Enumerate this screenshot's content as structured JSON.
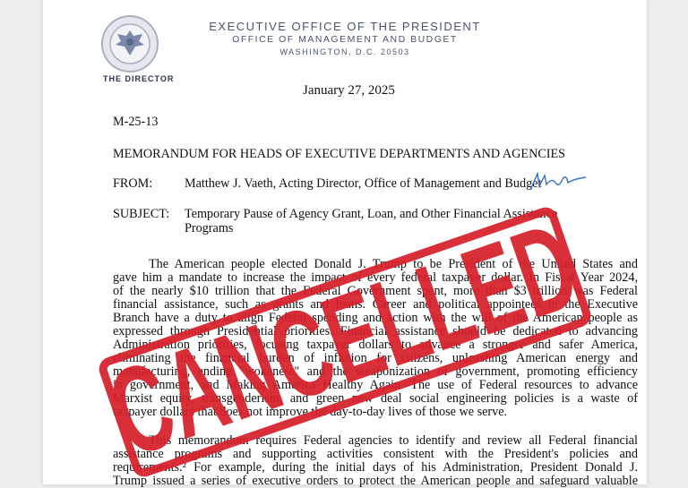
{
  "letterhead": {
    "line1": "EXECUTIVE OFFICE OF THE PRESIDENT",
    "line2": "OFFICE OF MANAGEMENT AND BUDGET",
    "line3": "WASHINGTON, D.C. 20503",
    "seal_caption": "THE DIRECTOR",
    "seal_icon": "presidential-seal-icon"
  },
  "date": "January 27, 2025",
  "memo_number": "M-25-13",
  "memo_heading": "MEMORANDUM FOR HEADS OF EXECUTIVE DEPARTMENTS AND AGENCIES",
  "from": {
    "label": "FROM:",
    "value": "Matthew J. Vaeth, Acting Director, Office of Management and Budget"
  },
  "subject": {
    "label": "SUBJECT:",
    "line1": "Temporary Pause of Agency Grant, Loan, and Other Financial Assistance",
    "line2": "Programs"
  },
  "paragraph1": [
    "The American people elected Donald J. Trump to be President of the United States and",
    "gave him a mandate to increase the impact of every federal taxpayer dollar. In Fiscal Year 2024,",
    "of the nearly $10 trillion that the Federal Government spent, more than $3 trillion was Federal",
    "financial assistance, such as grants and loans. Career and political appointees in the Executive",
    "Branch have a duty to align Federal spending and action with the will of the American people as",
    "expressed through Presidential priorities. Financial assistance should be dedicated to advancing",
    "Administration priorities, focusing taxpayer dollars to advance a stronger and safer America,",
    "eliminating the financial burden of inflation for citizens, unleashing American energy and",
    "manufacturing, ending \"wokeness\" and the weaponization of government, promoting efficiency",
    "in government, and Making America Healthy Again. The use of Federal resources to advance",
    "Marxist equity, transgenderism, and green new deal social engineering policies is a waste of",
    "taxpayer dollars that does not improve the day-to-day lives of those we serve."
  ],
  "paragraph2": [
    "This memorandum requires Federal agencies to identify and review all Federal financial",
    "assistance programs and supporting activities consistent with the President's policies and",
    "requirements.² For example, during the initial days of his Administration, President Donald J.",
    "Trump issued a series of executive orders to protect the American people and safeguard valuable"
  ],
  "stamp": {
    "text": "CANCELLED",
    "color": "#d7202b"
  },
  "signature_color": "#3a6fc4"
}
